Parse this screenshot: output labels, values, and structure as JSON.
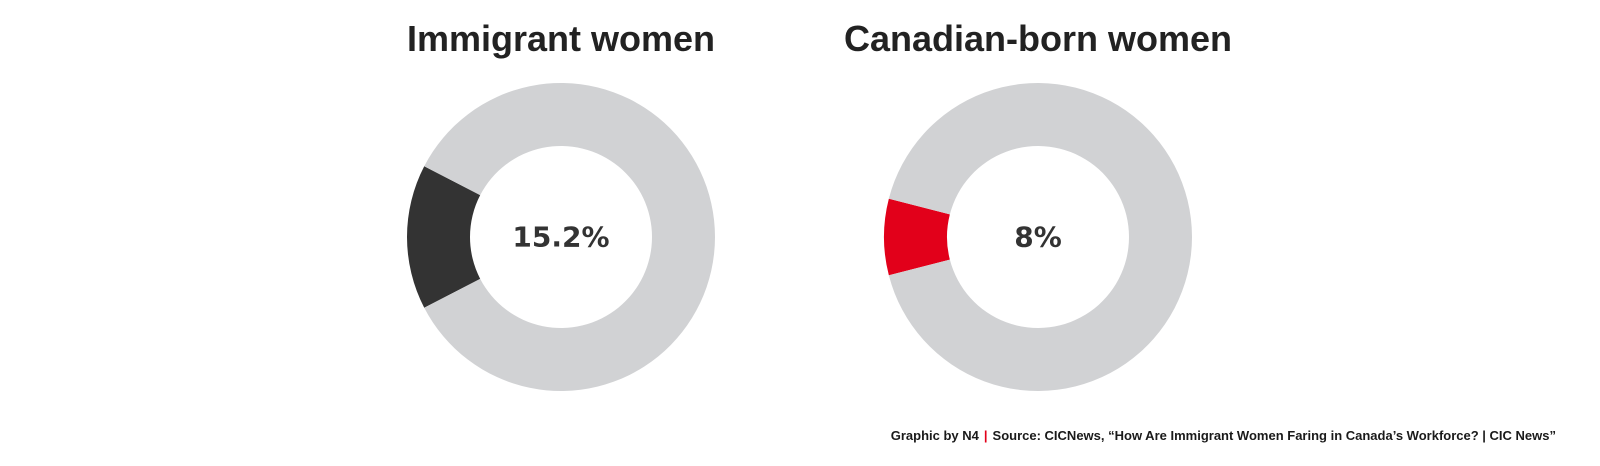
{
  "chart_data": [
    {
      "type": "pie",
      "title": "Immigrant women",
      "values": [
        15.2,
        84.8
      ],
      "center_label": "15.2%",
      "colors": [
        "#333333",
        "#d1d2d4"
      ]
    },
    {
      "type": "pie",
      "title": "Canadian-born women",
      "values": [
        8,
        92
      ],
      "center_label": "8%",
      "colors": [
        "#e2001a",
        "#d1d2d4"
      ]
    }
  ],
  "footer": {
    "credit": "Graphic by N4",
    "separator": "|",
    "source": "Source: CICNews, “How Are Immigrant Women Faring in Canada’s Workforce? | CIC News”"
  }
}
